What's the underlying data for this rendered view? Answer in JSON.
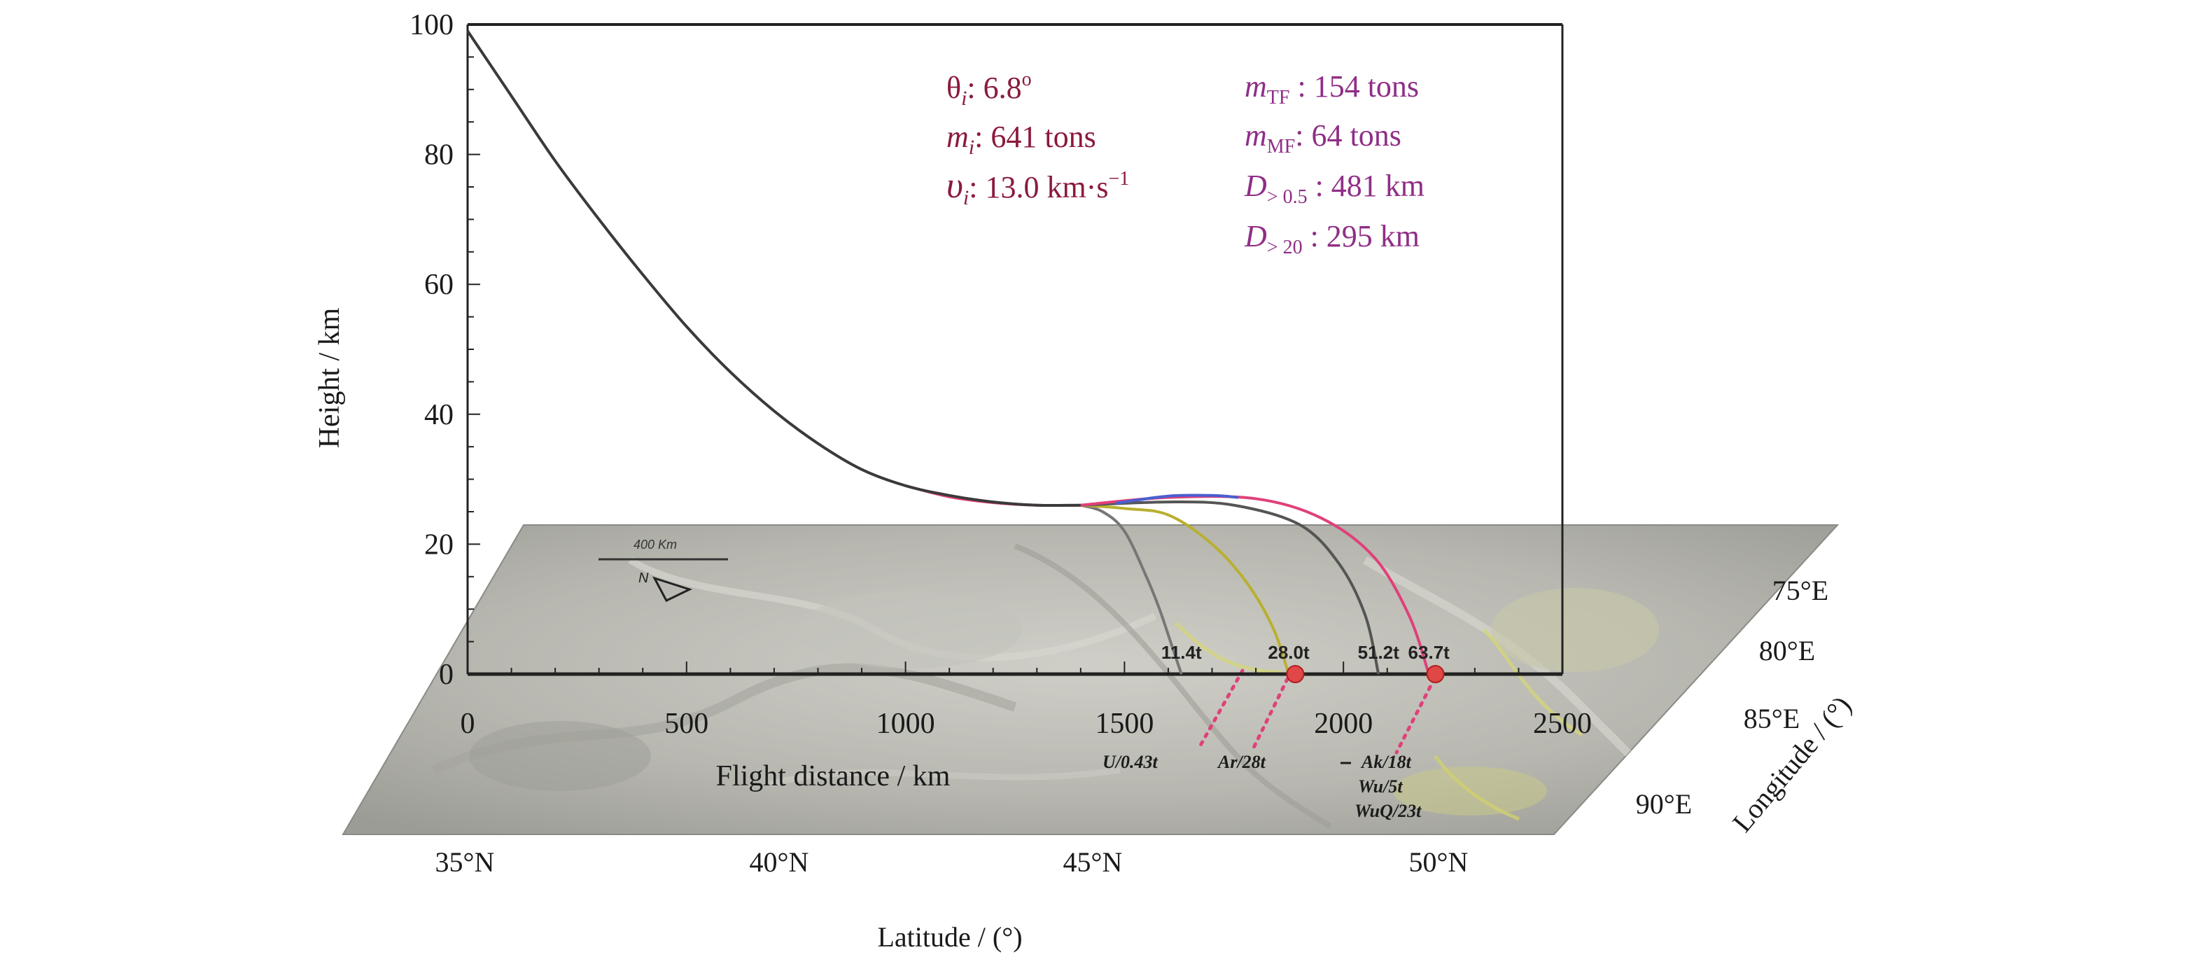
{
  "chart_data": {
    "type": "line",
    "xlabel": "Flight distance / km",
    "ylabel": "Height / km",
    "xlim": [
      0,
      2500
    ],
    "ylim": [
      0,
      100
    ],
    "x_ticks": [
      0,
      500,
      1000,
      1500,
      2000,
      2500
    ],
    "y_ticks": [
      0,
      20,
      40,
      60,
      80,
      100
    ],
    "main_trajectory": {
      "color": "#3a3a3a",
      "x": [
        0,
        100,
        200,
        300,
        400,
        500,
        600,
        700,
        800,
        900,
        1000,
        1100,
        1200,
        1300,
        1400
      ],
      "y": [
        99,
        89,
        79,
        70,
        61.5,
        53.5,
        46.5,
        40.5,
        35.5,
        31.5,
        29,
        27.5,
        26.5,
        26,
        26
      ]
    },
    "fragment_trajectories": [
      {
        "color": "#777777",
        "x": [
          1400,
          1450,
          1500,
          1550,
          1580,
          1610,
          1630
        ],
        "y": [
          26,
          25,
          22,
          15,
          10,
          4,
          0
        ]
      },
      {
        "color": "#b8b030",
        "x": [
          1400,
          1500,
          1600,
          1700,
          1780,
          1840,
          1875
        ],
        "y": [
          26,
          25.5,
          24.5,
          20,
          14,
          7,
          0
        ]
      },
      {
        "color": "#555555",
        "x": [
          1400,
          1600,
          1750,
          1900,
          1990,
          2050,
          2080
        ],
        "y": [
          26,
          26.5,
          26,
          23,
          17,
          9,
          0
        ]
      },
      {
        "color": "#e0407a",
        "x": [
          1000,
          1100,
          1200,
          1300,
          1400
        ],
        "y": [
          29,
          27.3,
          26.4,
          26,
          26
        ]
      },
      {
        "color": "#e0407a",
        "x": [
          1400,
          1600,
          1800,
          1950,
          2070,
          2150,
          2195
        ],
        "y": [
          26,
          27.2,
          27,
          24,
          18,
          9,
          0
        ]
      },
      {
        "color": "#4a5fd0",
        "x": [
          1480,
          1600,
          1700,
          1760
        ],
        "y": [
          26.3,
          27.4,
          27.5,
          27.2
        ]
      }
    ],
    "impacts": [
      {
        "label": "11.4t",
        "x": 1630
      },
      {
        "label": "28.0t",
        "x": 1875
      },
      {
        "label": "51.2t",
        "x": 2080
      },
      {
        "label": "63.7t",
        "x": 2195
      }
    ],
    "impact_markers": [
      1890,
      2210
    ],
    "params_left": [
      {
        "sym": "θ",
        "sub": "i",
        "value": ": 6.8",
        "sup": "o"
      },
      {
        "sym": "m",
        "sub": "i",
        "value": ": 641 tons"
      },
      {
        "sym": "υ",
        "sub": "i",
        "value": ": 13.0 km·s",
        "sup": "−1"
      }
    ],
    "params_right": [
      {
        "sym": "m",
        "sub": "TF",
        "value": " : 154 tons"
      },
      {
        "sym": "m",
        "sub": "MF",
        "value": ": 64 tons"
      },
      {
        "sym": "D",
        "sub": "> 0.5",
        "value": "  : 481 km"
      },
      {
        "sym": "D",
        "sub": "> 20",
        "value": " : 295 km"
      }
    ],
    "map": {
      "scale_label": "400 Km",
      "north_label": "N",
      "ground_labels": [
        "U/0.43t",
        "Ar/28t",
        "Ak/18t",
        "Wu/5t",
        "WuQ/23t"
      ],
      "latitude_label": "Latitude / (°)",
      "latitude_ticks": [
        "35°N",
        "40°N",
        "45°N",
        "50°N"
      ],
      "longitude_label": "Longitude / (°)",
      "longitude_ticks": [
        "75°E",
        "80°E",
        "85°E",
        "90°E"
      ]
    }
  }
}
